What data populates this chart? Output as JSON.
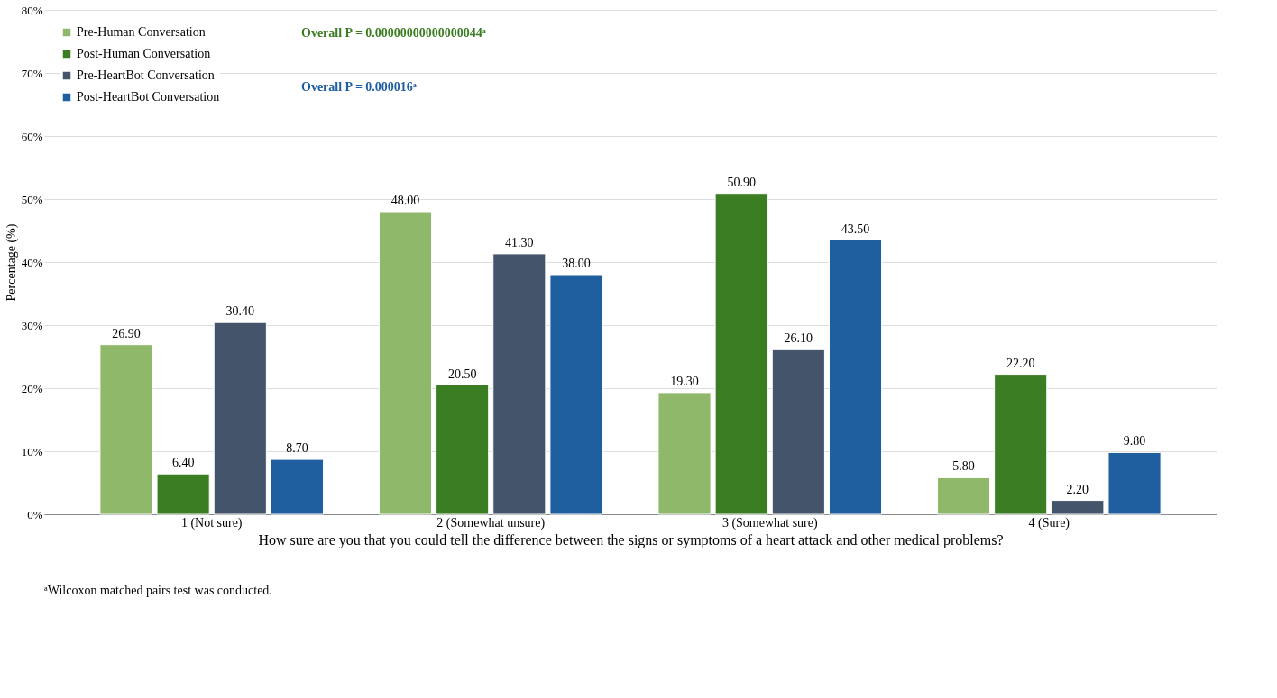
{
  "chart_data": {
    "type": "bar",
    "categories": [
      "1 (Not sure)",
      "2 (Somewhat unsure)",
      "3 (Somewhat sure)",
      "4 (Sure)"
    ],
    "series": [
      {
        "name": "Pre-Human Conversation",
        "color": "#8fb86a",
        "values": [
          26.9,
          48.0,
          19.3,
          5.8
        ],
        "value_labels": [
          "26.90",
          "48.00",
          "19.30",
          "5.80"
        ]
      },
      {
        "name": "Post-Human Conversation",
        "color": "#3b7d23",
        "values": [
          6.4,
          20.5,
          50.9,
          22.2
        ],
        "value_labels": [
          "6.40",
          "20.50",
          "50.90",
          "22.20"
        ]
      },
      {
        "name": "Pre-HeartBot Conversation",
        "color": "#44546a",
        "values": [
          30.4,
          41.3,
          26.1,
          2.2
        ],
        "value_labels": [
          "30.40",
          "41.30",
          "26.10",
          "2.20"
        ]
      },
      {
        "name": "Post-HeartBot Conversation",
        "color": "#1f5fa0",
        "values": [
          8.7,
          38.0,
          43.5,
          9.8
        ],
        "value_labels": [
          "8.70",
          "38.00",
          "43.50",
          "9.80"
        ]
      }
    ],
    "ylim": [
      0,
      80
    ],
    "yticks": [
      {
        "value": 0,
        "label": "0%"
      },
      {
        "value": 10,
        "label": "10%"
      },
      {
        "value": 20,
        "label": "20%"
      },
      {
        "value": 30,
        "label": "30%"
      },
      {
        "value": 40,
        "label": "40%"
      },
      {
        "value": 50,
        "label": "50%"
      },
      {
        "value": 60,
        "label": "60%"
      },
      {
        "value": 70,
        "label": "70%"
      },
      {
        "value": 80,
        "label": "80%"
      }
    ],
    "ylabel": "Percentage (%)",
    "xlabel": "How sure are you that you could tell the difference between the signs or symptoms of a heart attack and other medical problems?",
    "annotations": [
      "Overall P = 0.00000000000000044ᵃ",
      "Overall P = 0.000016ᵃ",
      "ᵃWilcoxon matched pairs test was conducted."
    ],
    "grid": "y",
    "legend": "top left"
  }
}
